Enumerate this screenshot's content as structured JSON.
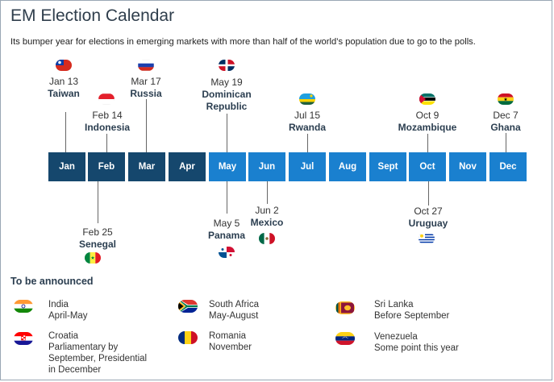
{
  "title": "EM Election Calendar",
  "subtitle": "Its bumper year for elections in emerging markets with more than half of the world’s population due to go to the polls.",
  "months": [
    "Jan",
    "Feb",
    "Mar",
    "Apr",
    "May",
    "Jun",
    "Jul",
    "Aug",
    "Sept",
    "Oct",
    "Nov",
    "Dec"
  ],
  "colors": {
    "month_dark": "#15476d",
    "month_light": "#1a80cf",
    "heading": "#2b3e50"
  },
  "events_above": [
    {
      "date": "Jan 13",
      "country": "Taiwan",
      "flag": "taiwan-flag-icon"
    },
    {
      "date": "Feb 14",
      "country": "Indonesia",
      "flag": "indonesia-flag-icon"
    },
    {
      "date": "Mar 17",
      "country": "Russia",
      "flag": "russia-flag-icon"
    },
    {
      "date": "May 19",
      "country": "Dominican Republic",
      "country_line1": "Dominican",
      "country_line2": "Republic",
      "flag": "dominican-republic-flag-icon"
    },
    {
      "date": "Jul 15",
      "country": "Rwanda",
      "flag": "rwanda-flag-icon"
    },
    {
      "date": "Oct 9",
      "country": "Mozambique",
      "flag": "mozambique-flag-icon"
    },
    {
      "date": "Dec 7",
      "country": "Ghana",
      "flag": "ghana-flag-icon"
    }
  ],
  "events_below": [
    {
      "date": "Feb 25",
      "country": "Senegal",
      "flag": "senegal-flag-icon"
    },
    {
      "date": "May 5",
      "country": "Panama",
      "flag": "panama-flag-icon"
    },
    {
      "date": "Jun 2",
      "country": "Mexico",
      "flag": "mexico-flag-icon"
    },
    {
      "date": "Oct 27",
      "country": "Uruguay",
      "flag": "uruguay-flag-icon"
    }
  ],
  "tba": {
    "heading": "To be announced",
    "items": [
      {
        "name": "India",
        "when": "April-May",
        "flag": "india-flag-icon"
      },
      {
        "name": "South Africa",
        "when": "May-August",
        "flag": "south-africa-flag-icon"
      },
      {
        "name": "Sri Lanka",
        "when": "Before September",
        "flag": "sri-lanka-flag-icon"
      },
      {
        "name": "Croatia",
        "when_lines": [
          "Parliamentary by",
          "September, Presidential",
          "in December"
        ],
        "flag": "croatia-flag-icon"
      },
      {
        "name": "Romania",
        "when": "November",
        "flag": "romania-flag-icon"
      },
      {
        "name": "Venezuela",
        "when": "Some point this year",
        "flag": "venezuela-flag-icon"
      }
    ]
  }
}
